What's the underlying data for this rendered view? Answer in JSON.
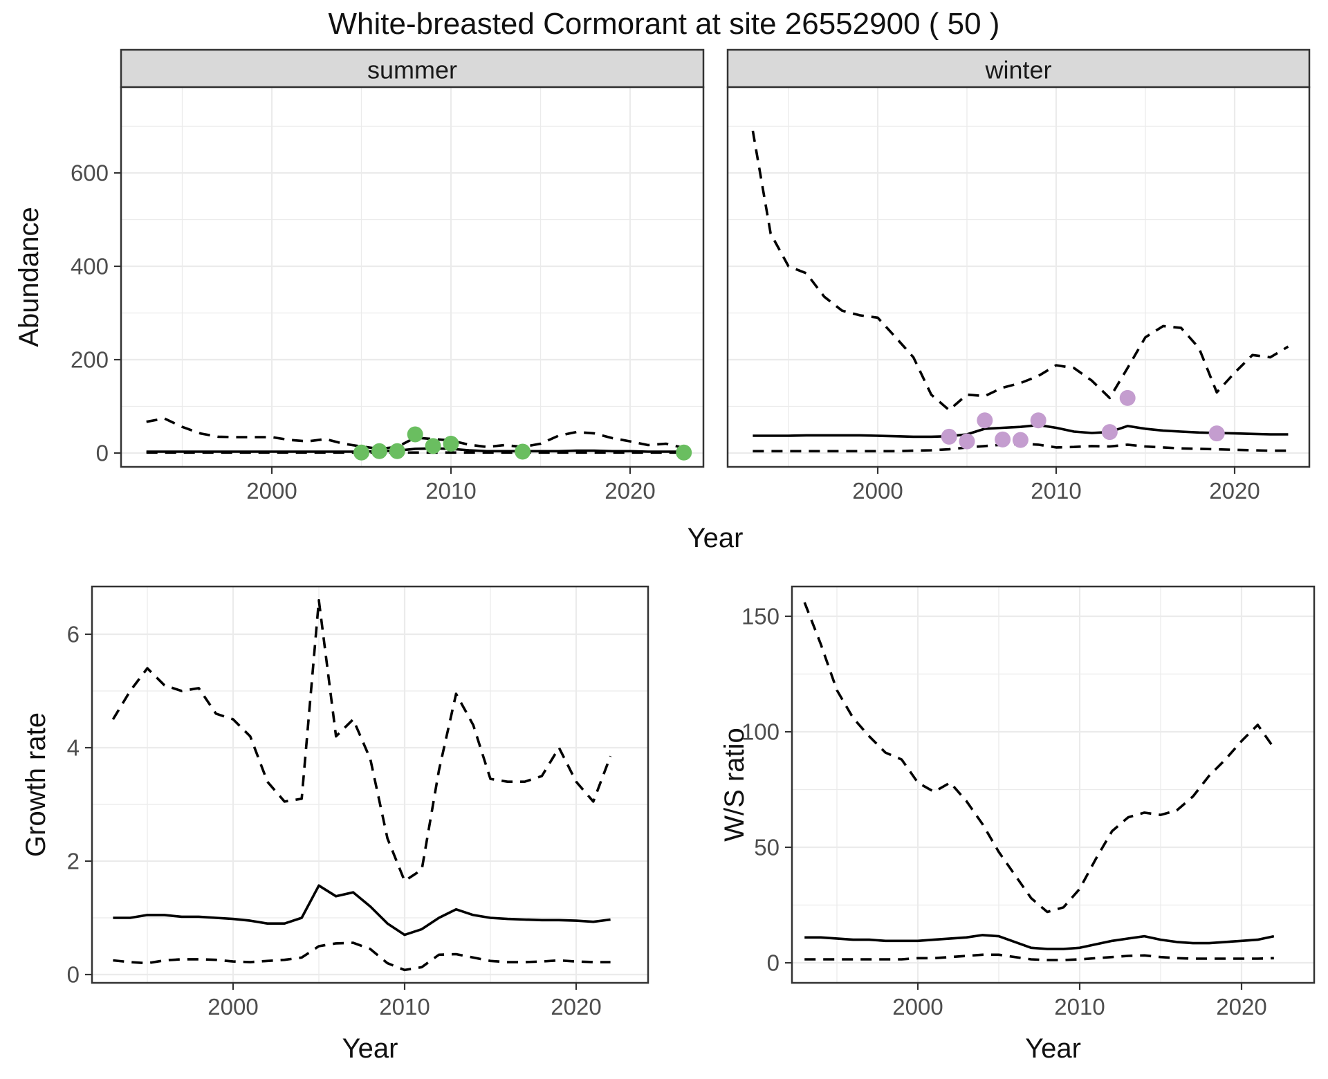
{
  "title": "White-breasted Cormorant at site 26552900 ( 50 )",
  "style": {
    "background": "#ffffff",
    "panel_bg": "#ffffff",
    "grid": "#ebebeb",
    "panel_border": "#333333",
    "strip_bg": "#d9d9d9",
    "strip_border": "#333333",
    "tick": "#333333",
    "tick_label": "#4d4d4d",
    "text": "#111111",
    "line": "#000000",
    "summer_point": "#6abe60",
    "winter_point": "#c49dcf"
  },
  "chart_data": [
    {
      "id": "abundance",
      "type": "line",
      "title": "",
      "ylabel": "Abundance",
      "xlabel": "Year",
      "yticks": [
        0,
        200,
        400,
        600
      ],
      "yticks_minor": [
        100,
        300,
        500,
        700
      ],
      "xticks": [
        2000,
        2010,
        2020
      ],
      "xticks_minor": [
        1995,
        2005,
        2015
      ],
      "xlim": [
        1991.5,
        2024.2
      ],
      "ylim": [
        -30,
        785
      ],
      "x": [
        1993,
        1994,
        1995,
        1996,
        1997,
        1998,
        1999,
        2000,
        2001,
        2002,
        2003,
        2004,
        2005,
        2006,
        2007,
        2008,
        2009,
        2010,
        2011,
        2012,
        2013,
        2014,
        2015,
        2016,
        2017,
        2018,
        2019,
        2020,
        2021,
        2022,
        2023
      ],
      "facets": [
        {
          "label": "summer",
          "point_color": "#6abe60",
          "series": [
            {
              "name": "median",
              "linetype": "solid",
              "values": [
                3,
                3,
                3,
                3,
                3,
                3,
                3,
                3,
                3,
                3,
                3,
                3,
                3,
                4,
                5,
                9,
                10,
                9,
                6,
                4,
                4,
                4,
                4,
                4,
                5,
                5,
                4,
                4,
                3,
                3,
                3
              ]
            },
            {
              "name": "upper_ci",
              "linetype": "dashed",
              "values": [
                67,
                74,
                56,
                42,
                35,
                34,
                34,
                34,
                28,
                25,
                30,
                20,
                14,
                9,
                13,
                33,
                30,
                27,
                18,
                13,
                17,
                13,
                20,
                37,
                45,
                42,
                32,
                25,
                17,
                20,
                11
              ]
            },
            {
              "name": "lower_ci",
              "linetype": "dashed",
              "values": [
                1,
                1,
                1,
                1,
                1,
                1,
                1,
                1,
                1,
                1,
                1,
                1,
                1,
                1,
                1,
                1,
                1,
                1,
                1,
                1,
                1,
                1,
                1,
                1,
                1,
                1,
                1,
                1,
                1,
                1,
                1
              ]
            }
          ],
          "observations": {
            "years": [
              2005,
              2006,
              2007,
              2008,
              2009,
              2010,
              2014,
              2023
            ],
            "values": [
              1,
              4,
              4,
              40,
              15,
              20,
              3,
              1
            ]
          }
        },
        {
          "label": "winter",
          "point_color": "#c49dcf",
          "series": [
            {
              "name": "median",
              "linetype": "solid",
              "values": [
                37,
                37,
                37,
                38,
                38,
                38,
                38,
                37,
                36,
                35,
                35,
                36,
                40,
                52,
                54,
                56,
                60,
                54,
                46,
                43,
                45,
                58,
                52,
                48,
                46,
                44,
                43,
                42,
                41,
                40,
                40
              ]
            },
            {
              "name": "upper_ci",
              "linetype": "dashed",
              "values": [
                690,
                470,
                400,
                385,
                335,
                305,
                295,
                290,
                248,
                205,
                125,
                92,
                125,
                122,
                140,
                150,
                165,
                188,
                182,
                155,
                118,
                182,
                248,
                272,
                268,
                225,
                130,
                172,
                210,
                205,
                228
              ]
            },
            {
              "name": "lower_ci",
              "linetype": "dashed",
              "values": [
                4,
                4,
                4,
                4,
                4,
                4,
                4,
                4,
                4,
                5,
                6,
                8,
                12,
                15,
                18,
                20,
                18,
                12,
                13,
                15,
                14,
                18,
                14,
                12,
                10,
                9,
                8,
                7,
                6,
                5,
                5
              ]
            }
          ],
          "observations": {
            "years": [
              2004,
              2005,
              2006,
              2007,
              2008,
              2009,
              2013,
              2014,
              2019
            ],
            "values": [
              35,
              25,
              70,
              29,
              28,
              70,
              45,
              118,
              42
            ]
          }
        }
      ]
    },
    {
      "id": "growth_rate",
      "type": "line",
      "title": "",
      "ylabel": "Growth rate",
      "xlabel": "Year",
      "yticks": [
        0,
        2,
        4,
        6
      ],
      "yticks_minor": [
        1,
        3,
        5
      ],
      "xticks": [
        2000,
        2010,
        2020
      ],
      "xticks_minor": [
        1995,
        2005,
        2015
      ],
      "xlim": [
        1991.8,
        2024.2
      ],
      "ylim": [
        -0.3,
        6.85
      ],
      "x": [
        1993,
        1994,
        1995,
        1996,
        1997,
        1998,
        1999,
        2000,
        2001,
        2002,
        2003,
        2004,
        2005,
        2006,
        2007,
        2008,
        2009,
        2010,
        2011,
        2012,
        2013,
        2014,
        2015,
        2016,
        2017,
        2018,
        2019,
        2020,
        2021,
        2022
      ],
      "series": [
        {
          "name": "median",
          "linetype": "solid",
          "values": [
            1.0,
            1.0,
            1.05,
            1.05,
            1.02,
            1.02,
            1.0,
            0.98,
            0.95,
            0.9,
            0.9,
            1.0,
            1.57,
            1.38,
            1.45,
            1.2,
            0.9,
            0.7,
            0.8,
            1.0,
            1.15,
            1.05,
            1.0,
            0.98,
            0.97,
            0.96,
            0.96,
            0.95,
            0.93,
            0.97
          ]
        },
        {
          "name": "upper_ci",
          "linetype": "dashed",
          "values": [
            4.5,
            5.0,
            5.4,
            5.1,
            5.0,
            5.05,
            4.6,
            4.5,
            4.2,
            3.4,
            3.05,
            3.1,
            6.6,
            4.2,
            4.5,
            3.8,
            2.4,
            1.65,
            1.85,
            3.6,
            4.95,
            4.4,
            3.45,
            3.4,
            3.4,
            3.5,
            4.0,
            3.4,
            3.05,
            3.85
          ]
        },
        {
          "name": "lower_ci",
          "linetype": "dashed",
          "values": [
            0.25,
            0.22,
            0.2,
            0.25,
            0.27,
            0.27,
            0.26,
            0.23,
            0.22,
            0.24,
            0.26,
            0.3,
            0.5,
            0.55,
            0.56,
            0.45,
            0.2,
            0.08,
            0.13,
            0.35,
            0.36,
            0.3,
            0.24,
            0.22,
            0.22,
            0.23,
            0.25,
            0.23,
            0.22,
            0.22
          ]
        }
      ]
    },
    {
      "id": "ws_ratio",
      "type": "line",
      "title": "",
      "ylabel": "W/S ratio",
      "xlabel": "Year",
      "yticks": [
        0,
        50,
        100,
        150
      ],
      "yticks_minor": [
        25,
        75,
        125
      ],
      "xticks": [
        2000,
        2010,
        2020
      ],
      "xticks_minor": [
        1995,
        2005,
        2015
      ],
      "xlim": [
        1992.2,
        2024.5
      ],
      "ylim": [
        -9,
        163
      ],
      "x": [
        1993,
        1994,
        1995,
        1996,
        1997,
        1998,
        1999,
        2000,
        2001,
        2002,
        2003,
        2004,
        2005,
        2006,
        2007,
        2008,
        2009,
        2010,
        2011,
        2012,
        2013,
        2014,
        2015,
        2016,
        2017,
        2018,
        2019,
        2020,
        2021,
        2022
      ],
      "series": [
        {
          "name": "median",
          "linetype": "solid",
          "values": [
            11,
            11,
            10.5,
            10,
            10,
            9.5,
            9.5,
            9.5,
            10,
            10.5,
            11,
            12,
            11.5,
            9,
            6.5,
            6,
            6,
            6.5,
            8,
            9.5,
            10.5,
            11.5,
            10,
            9,
            8.5,
            8.5,
            9,
            9.5,
            10,
            11.5
          ]
        },
        {
          "name": "upper_ci",
          "linetype": "dashed",
          "values": [
            156,
            138,
            118,
            106,
            98,
            91,
            88,
            78,
            74,
            78,
            70,
            60,
            48,
            38,
            28,
            22,
            24,
            32,
            45,
            57,
            63,
            65,
            64,
            66,
            72,
            81,
            88,
            96,
            103,
            93
          ]
        },
        {
          "name": "lower_ci",
          "linetype": "dashed",
          "values": [
            1.5,
            1.5,
            1.5,
            1.5,
            1.5,
            1.5,
            1.5,
            2,
            2,
            2.5,
            3,
            3.5,
            3.5,
            2.5,
            1.5,
            1.2,
            1.2,
            1.5,
            2,
            2.5,
            3,
            3.2,
            2.5,
            2,
            1.8,
            1.8,
            1.8,
            1.8,
            1.8,
            2
          ]
        }
      ]
    }
  ]
}
